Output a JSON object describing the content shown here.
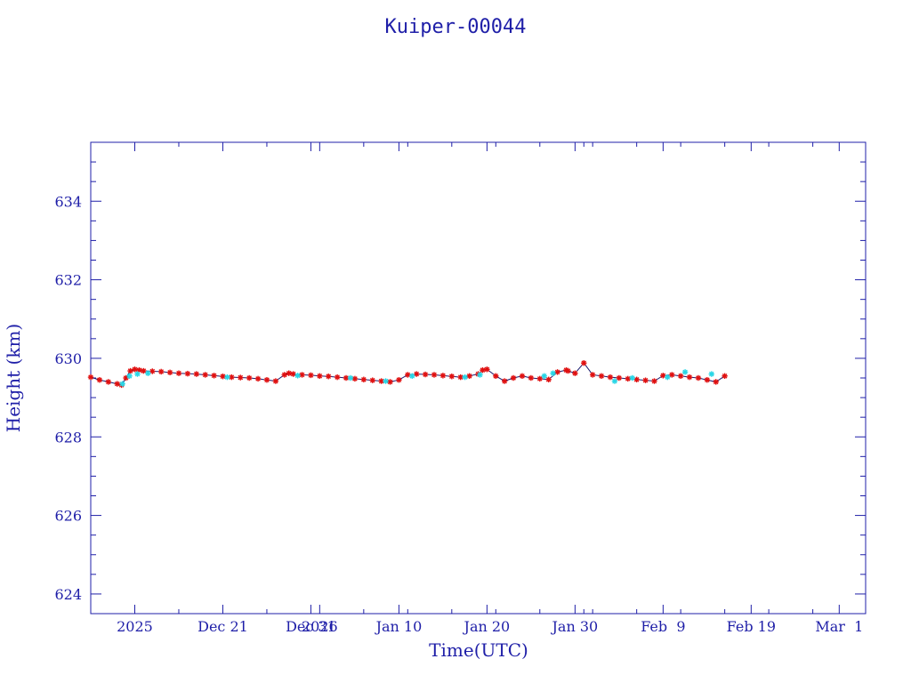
{
  "chart_data": {
    "type": "scatter",
    "title": "Kuiper-00044",
    "xlabel": "Time(UTC)",
    "ylabel": "Height (km)",
    "x_axis": "date",
    "xlim": [
      "2025-12-06",
      "2026-03-04"
    ],
    "ylim": [
      623.5,
      635.5
    ],
    "y_ticks": [
      624,
      626,
      628,
      630,
      632,
      634
    ],
    "x_ticks": [
      {
        "date": "2025-12-11",
        "label": "2025"
      },
      {
        "date": "2025-12-21",
        "label": "Dec 21"
      },
      {
        "date": "2025-12-31",
        "label": "Dec 31"
      },
      {
        "date": "2026-01-01",
        "label": "2026"
      },
      {
        "date": "2026-01-10",
        "label": "Jan 10"
      },
      {
        "date": "2026-01-20",
        "label": "Jan 20"
      },
      {
        "date": "2026-01-30",
        "label": "Jan 30"
      },
      {
        "date": "2026-02-09",
        "label": "Feb  9"
      },
      {
        "date": "2026-02-19",
        "label": "Feb 19"
      },
      {
        "date": "2026-03-01",
        "label": "Mar  1"
      }
    ],
    "grid": false,
    "colors": {
      "axis": "#1f1fa8",
      "line": "#1a1a6e",
      "marker_red": "#e01010",
      "marker_cyan": "#29d6e6"
    },
    "series": [
      {
        "marker": "red-star",
        "x": [
          "2025-12-06",
          "2025-12-07",
          "2025-12-08",
          "2025-12-09",
          "2025-12-09.5",
          "2025-12-10",
          "2025-12-10.5",
          "2025-12-11",
          "2025-12-11.5",
          "2025-12-12",
          "2025-12-13",
          "2025-12-14",
          "2025-12-15",
          "2025-12-16",
          "2025-12-17",
          "2025-12-18",
          "2025-12-19",
          "2025-12-20",
          "2025-12-21",
          "2025-12-22",
          "2025-12-23",
          "2025-12-24",
          "2025-12-25",
          "2025-12-26",
          "2025-12-27",
          "2025-12-28",
          "2025-12-28.5",
          "2025-12-29",
          "2025-12-30",
          "2025-12-31",
          "2026-01-01",
          "2026-01-02",
          "2026-01-03",
          "2026-01-04",
          "2026-01-05",
          "2026-01-06",
          "2026-01-07",
          "2026-01-08",
          "2026-01-09",
          "2026-01-10",
          "2026-01-11",
          "2026-01-12",
          "2026-01-13",
          "2026-01-14",
          "2026-01-15",
          "2026-01-16",
          "2026-01-17",
          "2026-01-18",
          "2026-01-19",
          "2026-01-19.5",
          "2026-01-20",
          "2026-01-21",
          "2026-01-22",
          "2026-01-23",
          "2026-01-24",
          "2026-01-25",
          "2026-01-26",
          "2026-01-27",
          "2026-01-28",
          "2026-01-29",
          "2026-01-29.2",
          "2026-01-30",
          "2026-01-31",
          "2026-02-01",
          "2026-02-02",
          "2026-02-03",
          "2026-02-04",
          "2026-02-05",
          "2026-02-06",
          "2026-02-07",
          "2026-02-08",
          "2026-02-09",
          "2026-02-10",
          "2026-02-11",
          "2026-02-12",
          "2026-02-13",
          "2026-02-14",
          "2026-02-15",
          "2026-02-16"
        ],
        "y": [
          629.52,
          629.45,
          629.4,
          629.35,
          629.32,
          629.5,
          629.68,
          629.72,
          629.7,
          629.68,
          629.67,
          629.66,
          629.64,
          629.62,
          629.61,
          629.6,
          629.58,
          629.56,
          629.54,
          629.52,
          629.51,
          629.5,
          629.48,
          629.45,
          629.42,
          629.58,
          629.62,
          629.6,
          629.58,
          629.57,
          629.55,
          629.54,
          629.52,
          629.5,
          629.48,
          629.46,
          629.44,
          629.42,
          629.4,
          629.45,
          629.58,
          629.6,
          629.59,
          629.58,
          629.56,
          629.54,
          629.52,
          629.55,
          629.6,
          629.7,
          629.72,
          629.55,
          629.42,
          629.5,
          629.55,
          629.5,
          629.48,
          629.46,
          629.65,
          629.7,
          629.68,
          629.62,
          629.88,
          629.58,
          629.55,
          629.52,
          629.5,
          629.48,
          629.46,
          629.44,
          629.42,
          629.56,
          629.58,
          629.55,
          629.52,
          629.5,
          629.45,
          629.4,
          629.55
        ]
      },
      {
        "marker": "cyan-star",
        "x": [
          "2025-12-09.6",
          "2025-12-10.4",
          "2025-12-11.3",
          "2025-12-12.5",
          "2025-12-21.5",
          "2025-12-29.5",
          "2026-01-04.5",
          "2026-01-08.5",
          "2026-01-11.5",
          "2026-01-17.5",
          "2026-01-19.2",
          "2026-01-26.5",
          "2026-01-27.5",
          "2026-02-03.5",
          "2026-02-05.5",
          "2026-02-09.5",
          "2026-02-11.5",
          "2026-02-14.5"
        ],
        "y": [
          629.35,
          629.55,
          629.6,
          629.62,
          629.52,
          629.56,
          629.5,
          629.42,
          629.55,
          629.52,
          629.58,
          629.55,
          629.62,
          629.42,
          629.5,
          629.52,
          629.65,
          629.6
        ]
      }
    ]
  }
}
